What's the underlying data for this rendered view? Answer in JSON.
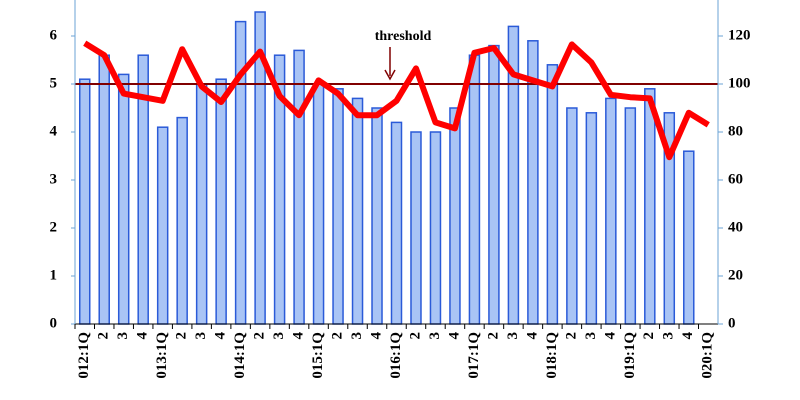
{
  "chart_data": {
    "type": "bar_line",
    "categories": [
      "012:1Q",
      "2",
      "3",
      "4",
      "013:1Q",
      "2",
      "3",
      "4",
      "014:1Q",
      "2",
      "3",
      "4",
      "015:1Q",
      "2",
      "3",
      "4",
      "016:1Q",
      "2",
      "3",
      "4",
      "017:1Q",
      "2",
      "3",
      "4",
      "018:1Q",
      "2",
      "3",
      "4",
      "019:1Q",
      "2",
      "3",
      "4",
      "020:1Q"
    ],
    "series": [
      {
        "type": "bar",
        "color": "#a9c4f5",
        "edge_color": "#2a5ad8",
        "values": [
          5.1,
          5.6,
          5.2,
          5.6,
          4.1,
          4.3,
          5.0,
          5.1,
          6.3,
          6.5,
          5.6,
          5.7,
          5.0,
          4.9,
          4.7,
          4.5,
          4.2,
          4.0,
          4.0,
          4.5,
          5.6,
          5.8,
          6.2,
          5.9,
          5.4,
          4.5,
          4.4,
          4.7,
          4.5,
          4.9,
          4.4,
          3.6,
          null
        ]
      },
      {
        "type": "line",
        "axis": "y2",
        "color": "#ff0000",
        "values": [
          117,
          112,
          96,
          94.5,
          93,
          114.5,
          99,
          92.5,
          104,
          113.5,
          95,
          87,
          101.5,
          96,
          87,
          87,
          93,
          106.5,
          84,
          81.5,
          113,
          115,
          104,
          101.5,
          99,
          116.5,
          109,
          95.5,
          94.5,
          94,
          69.5,
          88,
          83
        ]
      }
    ],
    "threshold": 5,
    "threshold_color": "#800000",
    "annotation": "threshold",
    "ylim": [
      0,
      6.75
    ],
    "yticks": [
      0,
      1,
      2,
      3,
      4,
      5,
      6
    ],
    "y2lim": [
      0,
      135
    ],
    "y2ticks": [
      0,
      20,
      40,
      60,
      80,
      100,
      120
    ]
  }
}
